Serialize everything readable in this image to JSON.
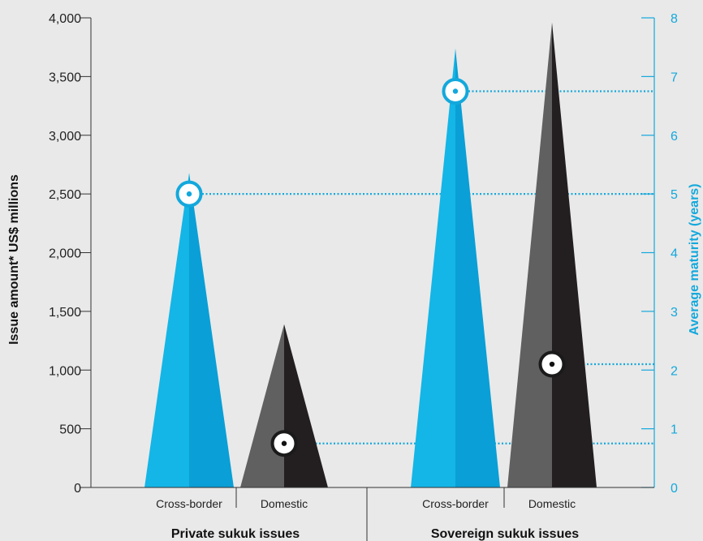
{
  "chart_data": {
    "type": "bar",
    "ylabel": "Issue amount* US$ millions",
    "y2label": "Average maturity (years)",
    "ylim": [
      0,
      4000
    ],
    "y2lim": [
      0,
      8
    ],
    "yticks": [
      "0",
      "500",
      "1,000",
      "1,500",
      "2,000",
      "2,500",
      "3,000",
      "3,500",
      "4,000"
    ],
    "y2ticks": [
      "0",
      "1",
      "2",
      "3",
      "4",
      "5",
      "6",
      "7",
      "8"
    ],
    "groups": [
      {
        "label": "Private sukuk issues",
        "categories": [
          "Cross-border",
          "Domestic"
        ]
      },
      {
        "label": "Sovereign sukuk issues",
        "categories": [
          "Cross-border",
          "Domestic"
        ]
      }
    ],
    "series": [
      {
        "name": "Issue amount",
        "values": [
          2680,
          1390,
          3740,
          3960
        ]
      },
      {
        "name": "Average maturity",
        "values": [
          5.0,
          0.75,
          6.75,
          2.1
        ]
      }
    ],
    "colors": {
      "cross_border": "#13a8dc",
      "domestic": "#333333",
      "accent": "#13a8dc"
    }
  }
}
